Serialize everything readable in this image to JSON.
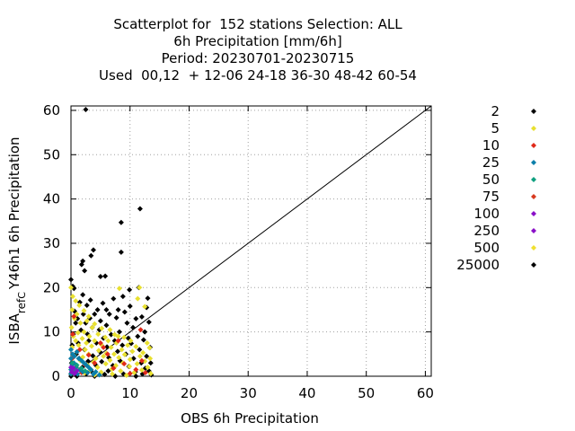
{
  "chart_data": {
    "type": "scatter",
    "title_lines": [
      "Scatterplot for  152 stations Selection: ALL",
      "6h Precipitation [mm/6h]",
      "Period: 20230701-20230715",
      "Used  00,12  + 12-06 24-18 36-30 48-42 60-54"
    ],
    "xlabel": "OBS 6h Precipitation",
    "ylabel_parts": [
      "ISBA",
      "ref",
      "C",
      "Y46h1 6h Precipitation"
    ],
    "xlim": [
      0,
      61
    ],
    "ylim": [
      0,
      61
    ],
    "xticks": [
      0,
      10,
      20,
      30,
      40,
      50,
      60
    ],
    "yticks": [
      0,
      10,
      20,
      30,
      40,
      50,
      60
    ],
    "grid": true,
    "legend_position": "right",
    "diagonal": [
      [
        0,
        0
      ],
      [
        61,
        61
      ]
    ],
    "legend": [
      {
        "label": "2",
        "color": "#000000"
      },
      {
        "label": "5",
        "color": "#e8e030"
      },
      {
        "label": "10",
        "color": "#e02a1a"
      },
      {
        "label": "25",
        "color": "#0a7faa"
      },
      {
        "label": "50",
        "color": "#10a080"
      },
      {
        "label": "75",
        "color": "#d83a20"
      },
      {
        "label": "100",
        "color": "#8a10c8"
      },
      {
        "label": "250",
        "color": "#8a10c8"
      },
      {
        "label": "500",
        "color": "#f0e030"
      },
      {
        "label": "25000",
        "color": "#000000"
      }
    ],
    "series": [
      {
        "color": "#000000",
        "points": [
          [
            2.5,
            60.2
          ],
          [
            11.7,
            37.8
          ],
          [
            8.5,
            34.7
          ],
          [
            8.5,
            28
          ],
          [
            3.8,
            28.5
          ],
          [
            3.4,
            27.2
          ],
          [
            2,
            26
          ],
          [
            1.8,
            25.2
          ],
          [
            2.3,
            23.8
          ],
          [
            5,
            22.5
          ],
          [
            5.8,
            22.6
          ],
          [
            0,
            21.8
          ],
          [
            0.3,
            20.3
          ],
          [
            0.5,
            19.8
          ],
          [
            9.9,
            19.5
          ],
          [
            11.5,
            20
          ],
          [
            8.8,
            18
          ],
          [
            7.2,
            17.5
          ],
          [
            13,
            17.6
          ],
          [
            2,
            18.4
          ],
          [
            3.3,
            17.2
          ],
          [
            5.4,
            16.5
          ],
          [
            1.5,
            16.7
          ],
          [
            2.7,
            16
          ],
          [
            10,
            15.8
          ],
          [
            12.8,
            15.5
          ],
          [
            4.5,
            15
          ],
          [
            6,
            15
          ],
          [
            8,
            15
          ],
          [
            0.6,
            14.7
          ],
          [
            2.1,
            14
          ],
          [
            9.1,
            14.5
          ],
          [
            4,
            14
          ],
          [
            6.5,
            14
          ],
          [
            12,
            13.4
          ],
          [
            11,
            13
          ],
          [
            1.1,
            13
          ],
          [
            3.2,
            13.1
          ],
          [
            7.7,
            13.2
          ],
          [
            5,
            12.5
          ],
          [
            9.5,
            12
          ],
          [
            2.5,
            12
          ],
          [
            0.8,
            12
          ],
          [
            13.2,
            12.2
          ],
          [
            6,
            11.5
          ],
          [
            10.5,
            11
          ],
          [
            3.6,
            11
          ],
          [
            4.8,
            10.5
          ],
          [
            1.7,
            10.4
          ],
          [
            8.2,
            10
          ],
          [
            12.5,
            10
          ],
          [
            0.4,
            9.5
          ],
          [
            2.8,
            9.5
          ],
          [
            6.8,
            9.4
          ],
          [
            11.3,
            9
          ],
          [
            5.5,
            8.6
          ],
          [
            9.7,
            8.6
          ],
          [
            3,
            8
          ],
          [
            7.4,
            8
          ],
          [
            12.3,
            8.2
          ],
          [
            1.2,
            7.5
          ],
          [
            4.3,
            7.5
          ],
          [
            10.2,
            7.4
          ],
          [
            0.2,
            7
          ],
          [
            8.7,
            7
          ],
          [
            6.1,
            6.6
          ],
          [
            13.4,
            6.5
          ],
          [
            2.3,
            6
          ],
          [
            11.6,
            6
          ],
          [
            4.9,
            5.5
          ],
          [
            7.9,
            5.6
          ],
          [
            0.9,
            5
          ],
          [
            9.3,
            5
          ],
          [
            3.7,
            4.6
          ],
          [
            12.8,
            4.5
          ],
          [
            6.4,
            4.2
          ],
          [
            1.4,
            4
          ],
          [
            10.6,
            4
          ],
          [
            2.9,
            3.4
          ],
          [
            5.2,
            3.3
          ],
          [
            8.3,
            3.5
          ],
          [
            0.1,
            3
          ],
          [
            11.9,
            3
          ],
          [
            13.5,
            3
          ],
          [
            4.2,
            2.5
          ],
          [
            7.1,
            2.4
          ],
          [
            9.8,
            2.2
          ],
          [
            1.9,
            2
          ],
          [
            12.6,
            1.8
          ],
          [
            0.5,
            1.2
          ],
          [
            3.4,
            1.2
          ],
          [
            6.3,
            1.2
          ],
          [
            10.9,
            1
          ],
          [
            13.2,
            1.2
          ],
          [
            0,
            0.5
          ],
          [
            2.6,
            0.5
          ],
          [
            5.7,
            0.4
          ],
          [
            8.9,
            0.5
          ],
          [
            12.1,
            0.5
          ],
          [
            0,
            0
          ],
          [
            1,
            0
          ],
          [
            4,
            0
          ],
          [
            7.5,
            0
          ],
          [
            11,
            0
          ],
          [
            13.6,
            0.3
          ]
        ]
      },
      {
        "color": "#e8e030",
        "points": [
          [
            0,
            20
          ],
          [
            0.3,
            18
          ],
          [
            0.8,
            17
          ],
          [
            1.4,
            16
          ],
          [
            0.2,
            15
          ],
          [
            2.2,
            14.8
          ],
          [
            1,
            14
          ],
          [
            3,
            13.5
          ],
          [
            0.6,
            13
          ],
          [
            2.7,
            12.5
          ],
          [
            1.6,
            12
          ],
          [
            4,
            11.8
          ],
          [
            0.1,
            11
          ],
          [
            3.6,
            11
          ],
          [
            5.2,
            10.8
          ],
          [
            2.2,
            10
          ],
          [
            6.6,
            10.5
          ],
          [
            1.2,
            9.8
          ],
          [
            4.6,
            9.5
          ],
          [
            0.4,
            9
          ],
          [
            7.4,
            9.4
          ],
          [
            3.1,
            9
          ],
          [
            5.8,
            8.8
          ],
          [
            8.2,
            19.8
          ],
          [
            8,
            9
          ],
          [
            1.9,
            8.5
          ],
          [
            9,
            8.8
          ],
          [
            6.3,
            8
          ],
          [
            0.8,
            8
          ],
          [
            4,
            8
          ],
          [
            10.1,
            8
          ],
          [
            11.6,
            20
          ],
          [
            11.3,
            17.5
          ],
          [
            12.5,
            15.7
          ],
          [
            2.6,
            7.5
          ],
          [
            7.7,
            7.5
          ],
          [
            12.9,
            7.5
          ],
          [
            5.1,
            7.2
          ],
          [
            1.3,
            7
          ],
          [
            9.6,
            7
          ],
          [
            3.5,
            6.8
          ],
          [
            11,
            6.7
          ],
          [
            0.2,
            6.5
          ],
          [
            6.8,
            6.5
          ],
          [
            13.3,
            6.4
          ],
          [
            2.4,
            6
          ],
          [
            8.6,
            6
          ],
          [
            4.7,
            5.8
          ],
          [
            10.4,
            5.6
          ],
          [
            1,
            5.5
          ],
          [
            12.2,
            5.3
          ],
          [
            6,
            5.2
          ],
          [
            3,
            5
          ],
          [
            7.3,
            5
          ],
          [
            9.1,
            4.9
          ],
          [
            0.5,
            4.7
          ],
          [
            11.7,
            4.5
          ],
          [
            5.5,
            4.5
          ],
          [
            2,
            4.3
          ],
          [
            8.1,
            4.2
          ],
          [
            13.4,
            4
          ],
          [
            4.2,
            4
          ],
          [
            10,
            3.8
          ],
          [
            6.6,
            3.6
          ],
          [
            1.6,
            3.5
          ],
          [
            12.5,
            3.4
          ],
          [
            3.8,
            3.2
          ],
          [
            8.8,
            3
          ],
          [
            0.3,
            3
          ],
          [
            11.2,
            2.8
          ],
          [
            5.9,
            2.8
          ],
          [
            2.8,
            2.5
          ],
          [
            7.6,
            2.4
          ],
          [
            9.9,
            2.2
          ],
          [
            13,
            2
          ],
          [
            4.5,
            2
          ],
          [
            1.1,
            1.8
          ],
          [
            6.9,
            1.6
          ],
          [
            12,
            1.4
          ],
          [
            3.3,
            1.4
          ],
          [
            8.4,
            1.2
          ],
          [
            0.7,
            1
          ],
          [
            5.1,
            0.9
          ],
          [
            10.7,
            0.8
          ],
          [
            2.3,
            0.7
          ],
          [
            13.5,
            0.6
          ],
          [
            7,
            0.5
          ],
          [
            4,
            0.3
          ],
          [
            9.4,
            0.2
          ]
        ]
      },
      {
        "color": "#e02a1a",
        "points": [
          [
            0.5,
            13.5
          ],
          [
            0.3,
            9.5
          ],
          [
            5,
            7.5
          ],
          [
            8,
            8
          ],
          [
            11.8,
            10.5
          ],
          [
            5.5,
            6.5
          ],
          [
            1.5,
            6
          ],
          [
            3,
            4.8
          ],
          [
            12,
            3.5
          ],
          [
            0.2,
            4
          ],
          [
            6.2,
            5
          ],
          [
            2.4,
            2.6
          ],
          [
            9,
            2.8
          ],
          [
            4,
            3
          ],
          [
            11,
            1.5
          ],
          [
            7.2,
            1.8
          ],
          [
            0.8,
            2
          ],
          [
            1.8,
            0.8
          ],
          [
            10,
            0.6
          ],
          [
            12.6,
            0.8
          ]
        ]
      },
      {
        "color": "#0a7faa",
        "points": [
          [
            0,
            6
          ],
          [
            0.3,
            5
          ],
          [
            0.6,
            4.5
          ],
          [
            1,
            5.5
          ],
          [
            0,
            4
          ],
          [
            1.3,
            4
          ],
          [
            0.5,
            3
          ],
          [
            1.8,
            3.5
          ],
          [
            0.2,
            2.5
          ],
          [
            2.2,
            3
          ],
          [
            0.9,
            2
          ],
          [
            2.6,
            2.5
          ],
          [
            0,
            1.5
          ],
          [
            1.5,
            1.5
          ],
          [
            3,
            2
          ],
          [
            0.4,
            1
          ],
          [
            2,
            1
          ],
          [
            3.4,
            1.5
          ],
          [
            1.1,
            0.5
          ],
          [
            2.8,
            0.8
          ],
          [
            0,
            0.5
          ],
          [
            3.8,
            0.5
          ],
          [
            4.2,
            1
          ],
          [
            4.8,
            0.3
          ]
        ]
      },
      {
        "color": "#10a080",
        "points": [
          [
            0.2,
            3
          ],
          [
            1,
            2.5
          ],
          [
            0.6,
            1.5
          ],
          [
            1.8,
            1.8
          ],
          [
            0.1,
            0.8
          ],
          [
            2.4,
            1.2
          ]
        ]
      },
      {
        "color": "#8a10c8",
        "points": [
          [
            0,
            2
          ],
          [
            0.4,
            1.8
          ],
          [
            1,
            1.2
          ],
          [
            0.1,
            1
          ],
          [
            0.6,
            0.6
          ]
        ]
      }
    ]
  }
}
